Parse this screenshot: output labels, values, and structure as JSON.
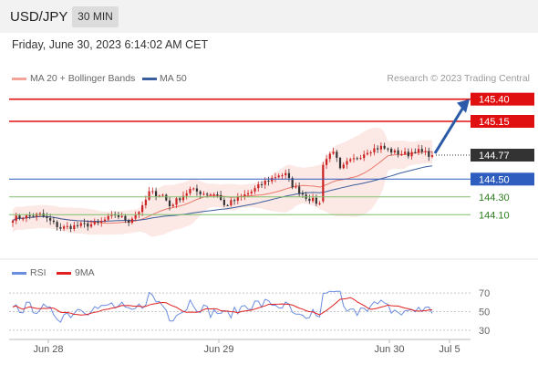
{
  "header": {
    "pair": "USD/JPY",
    "timeframe": "30 MIN"
  },
  "date_text": "Friday, June 30, 2023 6:14:02 AM CET",
  "legend": {
    "ma20_bb": "MA 20 + Bollinger Bands",
    "ma50": "MA 50",
    "credit": "Research © 2023 Trading Central",
    "rsi": "RSI",
    "ma9": "9MA"
  },
  "colors": {
    "ma20": "#e87a6b",
    "bands_fill": "#fbe0dc",
    "ma50": "#3b5f9e",
    "resistance": "#e01010",
    "support": "#7fbf6a",
    "pivot": "#2f5dbf",
    "current": "#333333",
    "up": "#cc2222",
    "down": "#333333",
    "arrow": "#2a5aa8",
    "rsi": "#6b8de0",
    "rsi_ma": "#e02020"
  },
  "chart_data": [
    {
      "type": "candlestick",
      "ylim": [
        143.62,
        145.53
      ],
      "x_labels": [
        "Jun 28",
        "Jun 29",
        "Jun 30",
        "Jul 5"
      ],
      "levels": [
        {
          "label": "145.40",
          "value": 145.4,
          "kind": "resistance"
        },
        {
          "label": "145.15",
          "value": 145.15,
          "kind": "resistance"
        },
        {
          "label": "144.77",
          "value": 144.77,
          "kind": "current"
        },
        {
          "label": "144.50",
          "value": 144.5,
          "kind": "pivot"
        },
        {
          "label": "144.30",
          "value": 144.3,
          "kind": "support"
        },
        {
          "label": "144.10",
          "value": 144.1,
          "kind": "support"
        }
      ],
      "forecast_target": 145.4
    },
    {
      "type": "line",
      "series": [
        {
          "name": "RSI"
        },
        {
          "name": "9MA"
        }
      ],
      "ylim": [
        22,
        78
      ],
      "y_ticks": [
        70,
        50,
        30
      ]
    }
  ]
}
